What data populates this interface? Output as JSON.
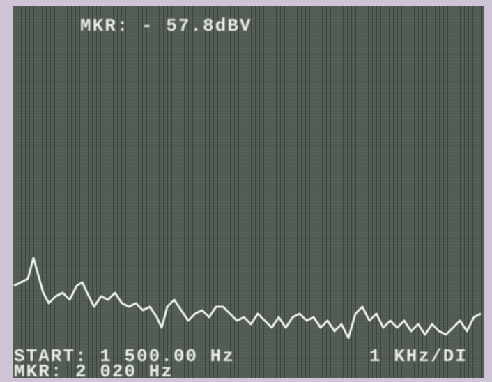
{
  "screen": {
    "top_left": "MKR: - 57.8dBV",
    "bottom_left": "START: 1 500.00 Hz",
    "bottom_right": "1 KHz/DI",
    "bottom_left_2": "MKR: 2 020 Hz"
  }
}
